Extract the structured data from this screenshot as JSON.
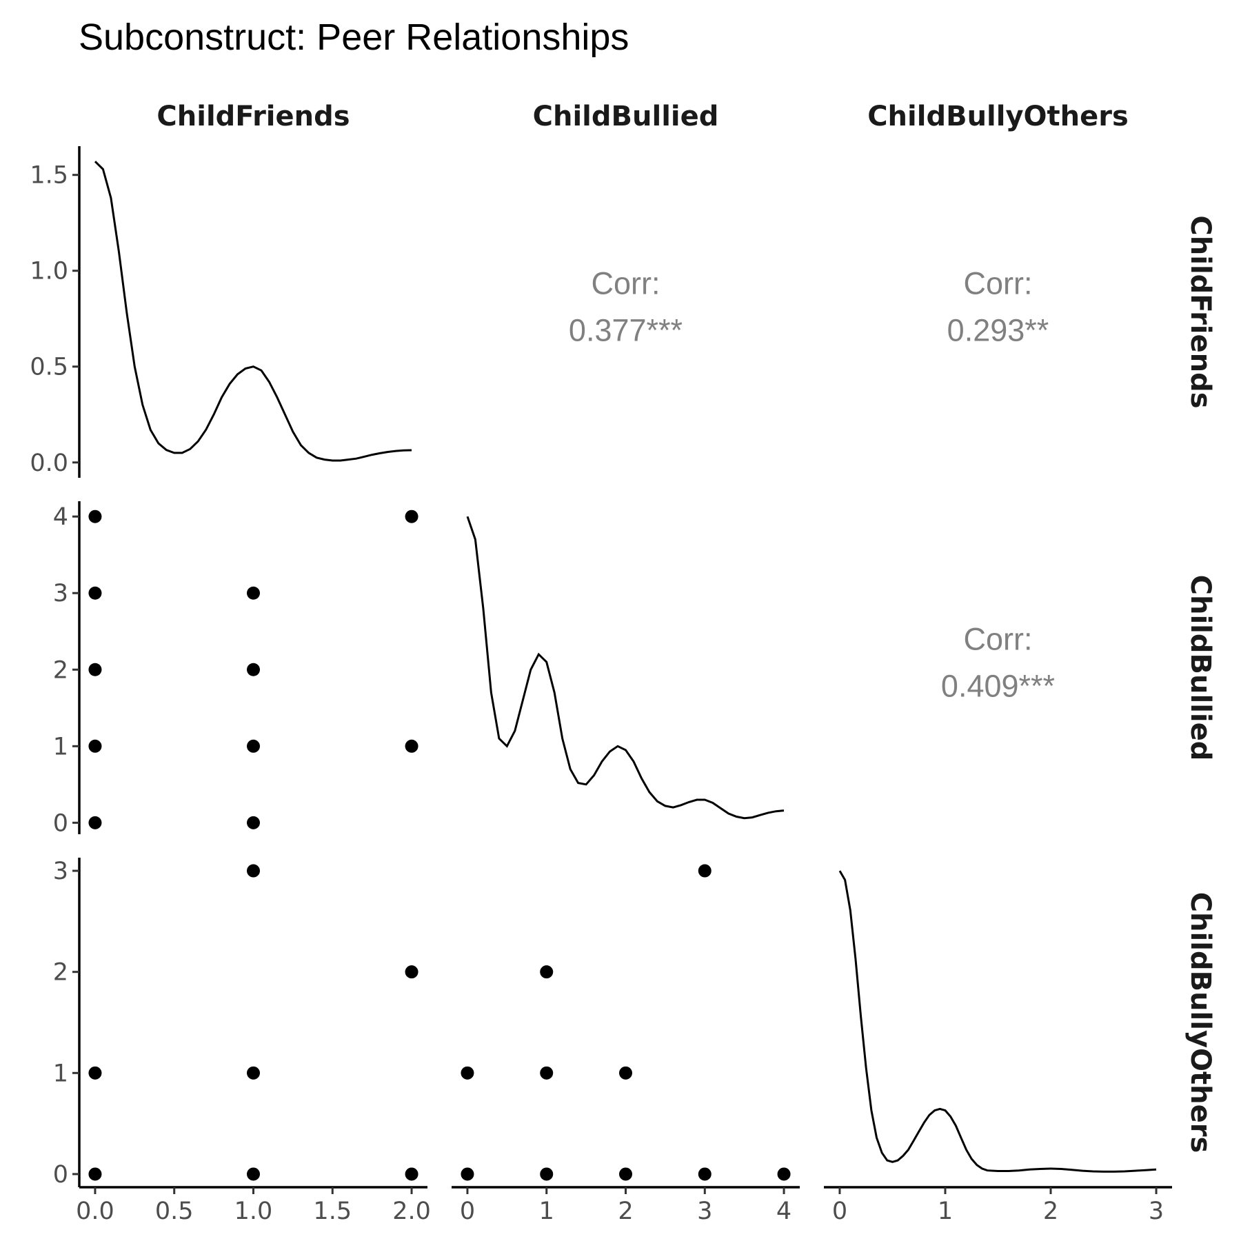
{
  "title": "Subconstruct: Peer Relationships",
  "variables": [
    "ChildFriends",
    "ChildBullied",
    "ChildBullyOthers"
  ],
  "chart_data": {
    "type": "scatter",
    "layout": "pairs-matrix",
    "title": "Subconstruct: Peer Relationships",
    "variables": [
      "ChildFriends",
      "ChildBullied",
      "ChildBullyOthers"
    ],
    "axes": {
      "ChildFriends": {
        "xlim": [
          -0.1,
          2.1
        ],
        "ticks": [
          0,
          0.5,
          1,
          1.5,
          2
        ],
        "tick_labels": [
          "0.0",
          "0.5",
          "1.0",
          "1.5",
          "2.0"
        ]
      },
      "ChildBullied": {
        "xlim": [
          -0.2,
          4.2
        ],
        "ticks": [
          0,
          1,
          2,
          3,
          4
        ],
        "tick_labels": [
          "0",
          "1",
          "2",
          "3",
          "4"
        ],
        "ylim": [
          -0.15,
          4.2
        ]
      },
      "ChildBullyOthers": {
        "xlim": [
          -0.15,
          3.15
        ],
        "ticks": [
          0,
          1,
          2,
          3
        ],
        "tick_labels": [
          "0",
          "1",
          "2",
          "3"
        ],
        "ylim": [
          -0.13,
          3.13
        ]
      }
    },
    "density_axis": {
      "variable": "ChildFriends",
      "ylim": [
        -0.08,
        1.65
      ],
      "ticks": [
        0,
        0.5,
        1,
        1.5
      ],
      "tick_labels": [
        "0.0",
        "0.5",
        "1.0",
        "1.5"
      ]
    },
    "density": {
      "ChildFriends": [
        [
          0,
          1.57
        ],
        [
          0.05,
          1.53
        ],
        [
          0.1,
          1.38
        ],
        [
          0.15,
          1.1
        ],
        [
          0.2,
          0.78
        ],
        [
          0.25,
          0.5
        ],
        [
          0.3,
          0.3
        ],
        [
          0.35,
          0.17
        ],
        [
          0.4,
          0.1
        ],
        [
          0.45,
          0.065
        ],
        [
          0.5,
          0.05
        ],
        [
          0.55,
          0.05
        ],
        [
          0.6,
          0.07
        ],
        [
          0.65,
          0.11
        ],
        [
          0.7,
          0.17
        ],
        [
          0.75,
          0.25
        ],
        [
          0.8,
          0.34
        ],
        [
          0.85,
          0.41
        ],
        [
          0.9,
          0.46
        ],
        [
          0.95,
          0.49
        ],
        [
          1.0,
          0.5
        ],
        [
          1.05,
          0.48
        ],
        [
          1.1,
          0.42
        ],
        [
          1.15,
          0.34
        ],
        [
          1.2,
          0.25
        ],
        [
          1.25,
          0.16
        ],
        [
          1.3,
          0.09
        ],
        [
          1.35,
          0.05
        ],
        [
          1.4,
          0.025
        ],
        [
          1.45,
          0.015
        ],
        [
          1.5,
          0.01
        ],
        [
          1.55,
          0.01
        ],
        [
          1.6,
          0.015
        ],
        [
          1.65,
          0.02
        ],
        [
          1.7,
          0.03
        ],
        [
          1.75,
          0.04
        ],
        [
          1.8,
          0.048
        ],
        [
          1.85,
          0.055
        ],
        [
          1.9,
          0.06
        ],
        [
          1.95,
          0.063
        ],
        [
          2.0,
          0.064
        ]
      ],
      "ChildBullied": [
        [
          0,
          0.4
        ],
        [
          0.1,
          0.37
        ],
        [
          0.2,
          0.28
        ],
        [
          0.3,
          0.17
        ],
        [
          0.4,
          0.11
        ],
        [
          0.5,
          0.1
        ],
        [
          0.6,
          0.12
        ],
        [
          0.7,
          0.16
        ],
        [
          0.8,
          0.2
        ],
        [
          0.9,
          0.22
        ],
        [
          1.0,
          0.21
        ],
        [
          1.1,
          0.17
        ],
        [
          1.2,
          0.11
        ],
        [
          1.3,
          0.07
        ],
        [
          1.4,
          0.052
        ],
        [
          1.5,
          0.05
        ],
        [
          1.6,
          0.062
        ],
        [
          1.7,
          0.08
        ],
        [
          1.8,
          0.093
        ],
        [
          1.9,
          0.1
        ],
        [
          2.0,
          0.095
        ],
        [
          2.1,
          0.08
        ],
        [
          2.2,
          0.058
        ],
        [
          2.3,
          0.04
        ],
        [
          2.4,
          0.028
        ],
        [
          2.5,
          0.022
        ],
        [
          2.6,
          0.02
        ],
        [
          2.7,
          0.023
        ],
        [
          2.8,
          0.027
        ],
        [
          2.9,
          0.03
        ],
        [
          3.0,
          0.03
        ],
        [
          3.1,
          0.026
        ],
        [
          3.2,
          0.019
        ],
        [
          3.3,
          0.012
        ],
        [
          3.4,
          0.008
        ],
        [
          3.5,
          0.006
        ],
        [
          3.6,
          0.007
        ],
        [
          3.7,
          0.01
        ],
        [
          3.8,
          0.013
        ],
        [
          3.9,
          0.015
        ],
        [
          4.0,
          0.016
        ]
      ],
      "ChildBullyOthers": [
        [
          0,
          1.0
        ],
        [
          0.05,
          0.97
        ],
        [
          0.1,
          0.87
        ],
        [
          0.15,
          0.71
        ],
        [
          0.2,
          0.52
        ],
        [
          0.25,
          0.35
        ],
        [
          0.3,
          0.21
        ],
        [
          0.35,
          0.12
        ],
        [
          0.4,
          0.07
        ],
        [
          0.45,
          0.045
        ],
        [
          0.5,
          0.04
        ],
        [
          0.55,
          0.045
        ],
        [
          0.6,
          0.06
        ],
        [
          0.65,
          0.08
        ],
        [
          0.7,
          0.11
        ],
        [
          0.75,
          0.14
        ],
        [
          0.8,
          0.17
        ],
        [
          0.85,
          0.195
        ],
        [
          0.9,
          0.21
        ],
        [
          0.95,
          0.215
        ],
        [
          1.0,
          0.21
        ],
        [
          1.05,
          0.19
        ],
        [
          1.1,
          0.16
        ],
        [
          1.15,
          0.12
        ],
        [
          1.2,
          0.08
        ],
        [
          1.25,
          0.05
        ],
        [
          1.3,
          0.03
        ],
        [
          1.35,
          0.018
        ],
        [
          1.4,
          0.012
        ],
        [
          1.5,
          0.01
        ],
        [
          1.6,
          0.01
        ],
        [
          1.7,
          0.012
        ],
        [
          1.8,
          0.015
        ],
        [
          1.9,
          0.017
        ],
        [
          2.0,
          0.018
        ],
        [
          2.1,
          0.017
        ],
        [
          2.2,
          0.014
        ],
        [
          2.3,
          0.011
        ],
        [
          2.4,
          0.009
        ],
        [
          2.5,
          0.008
        ],
        [
          2.6,
          0.008
        ],
        [
          2.7,
          0.009
        ],
        [
          2.8,
          0.011
        ],
        [
          2.9,
          0.013
        ],
        [
          3.0,
          0.015
        ]
      ]
    },
    "scatter_panels": [
      {
        "x": "ChildFriends",
        "y": "ChildBullied",
        "points": [
          [
            0,
            4
          ],
          [
            0,
            3
          ],
          [
            0,
            2
          ],
          [
            0,
            1
          ],
          [
            0,
            0
          ],
          [
            1,
            3
          ],
          [
            1,
            2
          ],
          [
            1,
            1
          ],
          [
            1,
            0
          ],
          [
            2,
            4
          ],
          [
            2,
            1
          ]
        ]
      },
      {
        "x": "ChildFriends",
        "y": "ChildBullyOthers",
        "points": [
          [
            0,
            1
          ],
          [
            0,
            0
          ],
          [
            1,
            3
          ],
          [
            1,
            1
          ],
          [
            1,
            0
          ],
          [
            2,
            2
          ],
          [
            2,
            0
          ]
        ]
      },
      {
        "x": "ChildBullied",
        "y": "ChildBullyOthers",
        "points": [
          [
            0,
            1
          ],
          [
            0,
            0
          ],
          [
            1,
            2
          ],
          [
            1,
            1
          ],
          [
            1,
            0
          ],
          [
            2,
            1
          ],
          [
            2,
            0
          ],
          [
            3,
            3
          ],
          [
            3,
            0
          ],
          [
            4,
            0
          ]
        ]
      }
    ],
    "correlations": [
      {
        "x": "ChildBullied",
        "y": "ChildFriends",
        "label": "Corr:",
        "value": "0.377***"
      },
      {
        "x": "ChildBullyOthers",
        "y": "ChildFriends",
        "label": "Corr:",
        "value": "0.293**"
      },
      {
        "x": "ChildBullyOthers",
        "y": "ChildBullied",
        "label": "Corr:",
        "value": "0.409***"
      }
    ]
  }
}
